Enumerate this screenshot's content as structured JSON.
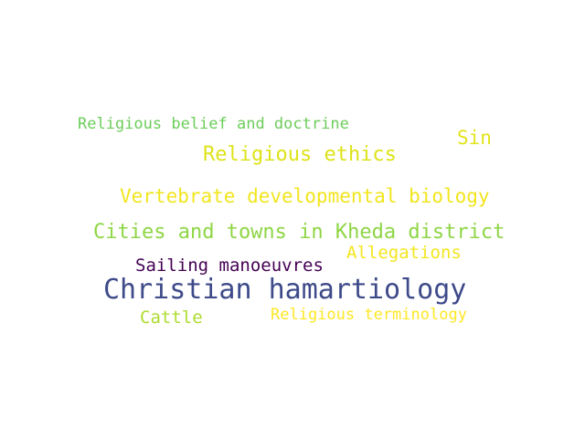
{
  "words": [
    {
      "text": "Religious belief and doctrine",
      "color": "#6ccd5a"
    },
    {
      "text": "Sin",
      "color": "#e2e419"
    },
    {
      "text": "Religious ethics",
      "color": "#dde318"
    },
    {
      "text": "Vertebrate developmental biology",
      "color": "#f2e51d"
    },
    {
      "text": "Cities and towns in Kheda district",
      "color": "#8ed645"
    },
    {
      "text": "Allegations",
      "color": "#f4e61e"
    },
    {
      "text": "Sailing manoeuvres",
      "color": "#440154"
    },
    {
      "text": "Christian hamartiology",
      "color": "#3e4a89"
    },
    {
      "text": "Cattle",
      "color": "#addc30"
    },
    {
      "text": "Religious terminology",
      "color": "#fde725"
    }
  ]
}
